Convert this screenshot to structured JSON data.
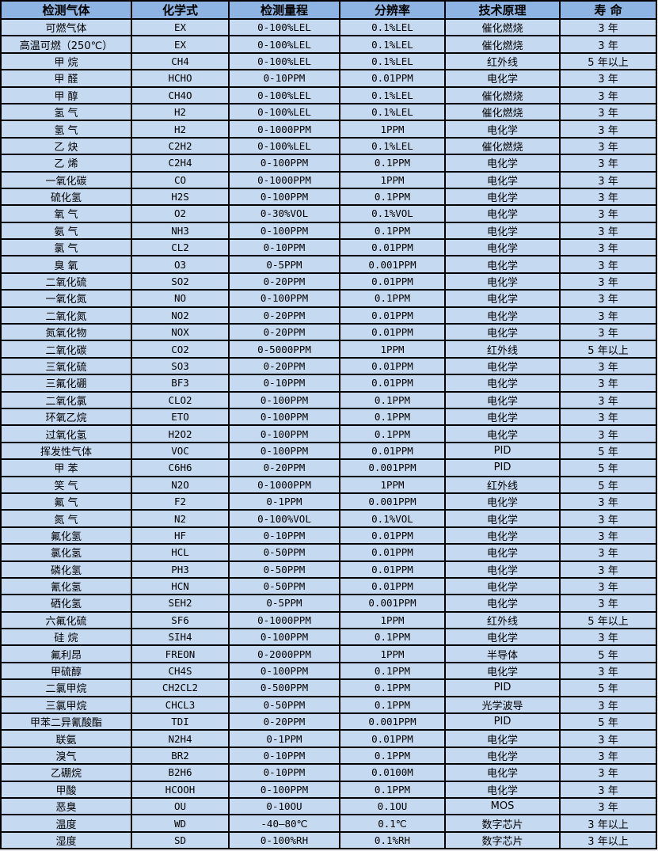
{
  "colors": {
    "header_bg": "#8db4e2",
    "row_bg": "#c5d9f1",
    "border": "#000000",
    "text": "#000000",
    "page_bg": "#eeeef4"
  },
  "table": {
    "headers": [
      "检测气体",
      "化学式",
      "检测量程",
      "分辨率",
      "技术原理",
      "寿 命"
    ],
    "rows": [
      [
        "可燃气体",
        "EX",
        "0-100%LEL",
        "0.1%LEL",
        "催化燃烧",
        "3 年"
      ],
      [
        "高温可燃（250℃）",
        "EX",
        "0-100%LEL",
        "0.1%LEL",
        "催化燃烧",
        "3 年"
      ],
      [
        "甲 烷",
        "CH4",
        "0-100%LEL",
        "0.1%LEL",
        "红外线",
        "5 年以上"
      ],
      [
        "甲 醛",
        "HCHO",
        "0-10PPM",
        "0.01PPM",
        "电化学",
        "3 年"
      ],
      [
        "甲 醇",
        "CH4O",
        "0-100%LEL",
        "0.1%LEL",
        "催化燃烧",
        "3 年"
      ],
      [
        "氢 气",
        "H2",
        "0-100%LEL",
        "0.1%LEL",
        "催化燃烧",
        "3 年"
      ],
      [
        "氢 气",
        "H2",
        "0-1000PPM",
        "1PPM",
        "电化学",
        "3 年"
      ],
      [
        "乙 炔",
        "C2H2",
        "0-100%LEL",
        "0.1%LEL",
        "催化燃烧",
        "3 年"
      ],
      [
        "乙 烯",
        "C2H4",
        "0-100PPM",
        "0.1PPM",
        "电化学",
        "3 年"
      ],
      [
        "一氧化碳",
        "CO",
        "0-1000PPM",
        "1PPM",
        "电化学",
        "3 年"
      ],
      [
        "硫化氢",
        "H2S",
        "0-100PPM",
        "0.1PPM",
        "电化学",
        "3 年"
      ],
      [
        "氧 气",
        "O2",
        "0-30%VOL",
        "0.1%VOL",
        "电化学",
        "3 年"
      ],
      [
        "氨 气",
        "NH3",
        "0-100PPM",
        "0.1PPM",
        "电化学",
        "3 年"
      ],
      [
        "氯 气",
        "CL2",
        "0-10PPM",
        "0.01PPM",
        "电化学",
        "3 年"
      ],
      [
        "臭 氧",
        "O3",
        "0-5PPM",
        "0.001PPM",
        "电化学",
        "3 年"
      ],
      [
        "二氧化硫",
        "SO2",
        "0-20PPM",
        "0.01PPM",
        "电化学",
        "3 年"
      ],
      [
        "一氧化氮",
        "NO",
        "0-100PPM",
        "0.1PPM",
        "电化学",
        "3 年"
      ],
      [
        "二氧化氮",
        "NO2",
        "0-20PPM",
        "0.01PPM",
        "电化学",
        "3 年"
      ],
      [
        "氮氧化物",
        "NOX",
        "0-20PPM",
        "0.01PPM",
        "电化学",
        "3 年"
      ],
      [
        "二氧化碳",
        "CO2",
        "0-5000PPM",
        "1PPM",
        "红外线",
        "5 年以上"
      ],
      [
        "三氧化硫",
        "SO3",
        "0-20PPM",
        "0.01PPM",
        "电化学",
        "3 年"
      ],
      [
        "三氟化硼",
        "BF3",
        "0-10PPM",
        "0.01PPM",
        "电化学",
        "3 年"
      ],
      [
        "二氧化氯",
        "CLO2",
        "0-100PPM",
        "0.1PPM",
        "电化学",
        "3 年"
      ],
      [
        "环氧乙烷",
        "ETO",
        "0-100PPM",
        "0.1PPM",
        "电化学",
        "3 年"
      ],
      [
        "过氧化氢",
        "H2O2",
        "0-100PPM",
        "0.1PPM",
        "电化学",
        "3 年"
      ],
      [
        "挥发性气体",
        "VOC",
        "0-100PPM",
        "0.01PPM",
        "PID",
        "5 年"
      ],
      [
        "甲 苯",
        "C6H6",
        "0-20PPM",
        "0.001PPM",
        "PID",
        "5 年"
      ],
      [
        "笑 气",
        "N2O",
        "0-1000PPM",
        "1PPM",
        "红外线",
        "5 年"
      ],
      [
        "氟 气",
        "F2",
        "0-1PPM",
        "0.001PPM",
        "电化学",
        "3 年"
      ],
      [
        "氮 气",
        "N2",
        "0-100%VOL",
        "0.1%VOL",
        "电化学",
        "3 年"
      ],
      [
        "氟化氢",
        "HF",
        "0-10PPM",
        "0.01PPM",
        "电化学",
        "3 年"
      ],
      [
        "氯化氢",
        "HCL",
        "0-50PPM",
        "0.01PPM",
        "电化学",
        "3 年"
      ],
      [
        "磷化氢",
        "PH3",
        "0-50PPM",
        "0.01PPM",
        "电化学",
        "3 年"
      ],
      [
        "氰化氢",
        "HCN",
        "0-50PPM",
        "0.01PPM",
        "电化学",
        "3 年"
      ],
      [
        "硒化氢",
        "SEH2",
        "0-5PPM",
        "0.001PPM",
        "电化学",
        "3 年"
      ],
      [
        "六氟化硫",
        "SF6",
        "0-1000PPM",
        "1PPM",
        "红外线",
        "5 年以上"
      ],
      [
        "硅 烷",
        "SIH4",
        "0-100PPM",
        "0.1PPM",
        "电化学",
        "3 年"
      ],
      [
        "氟利昂",
        "FREON",
        "0-2000PPM",
        "1PPM",
        "半导体",
        "5 年"
      ],
      [
        "甲硫醇",
        "CH4S",
        "0-100PPM",
        "0.1PPM",
        "电化学",
        "3 年"
      ],
      [
        "二氯甲烷",
        "CH2CL2",
        "0-500PPM",
        "0.1PPM",
        "PID",
        "5 年"
      ],
      [
        "三氯甲烷",
        "CHCL3",
        "0-50PPM",
        "0.1PPM",
        "光学波导",
        "3 年"
      ],
      [
        "甲苯二异氰酸酯",
        "TDI",
        "0-20PPM",
        "0.001PPM",
        "PID",
        "5 年"
      ],
      [
        "联氨",
        "N2H4",
        "0-1PPM",
        "0.01PPM",
        "电化学",
        "3 年"
      ],
      [
        "溴气",
        "BR2",
        "0-10PPM",
        "0.1PPM",
        "电化学",
        "3 年"
      ],
      [
        "乙硼烷",
        "B2H6",
        "0-10PPM",
        "0.0100M",
        "电化学",
        "3 年"
      ],
      [
        "甲酸",
        "HCOOH",
        "0-100PPM",
        "0.1PPM",
        "电化学",
        "3 年"
      ],
      [
        "恶臭",
        "OU",
        "0-10OU",
        "0.1OU",
        "MOS",
        "3 年"
      ],
      [
        "温度",
        "WD",
        "-40—80℃",
        "0.1℃",
        "数字芯片",
        "3 年以上"
      ],
      [
        "湿度",
        "SD",
        "0-100%RH",
        "0.1%RH",
        "数字芯片",
        "3 年以上"
      ]
    ]
  }
}
